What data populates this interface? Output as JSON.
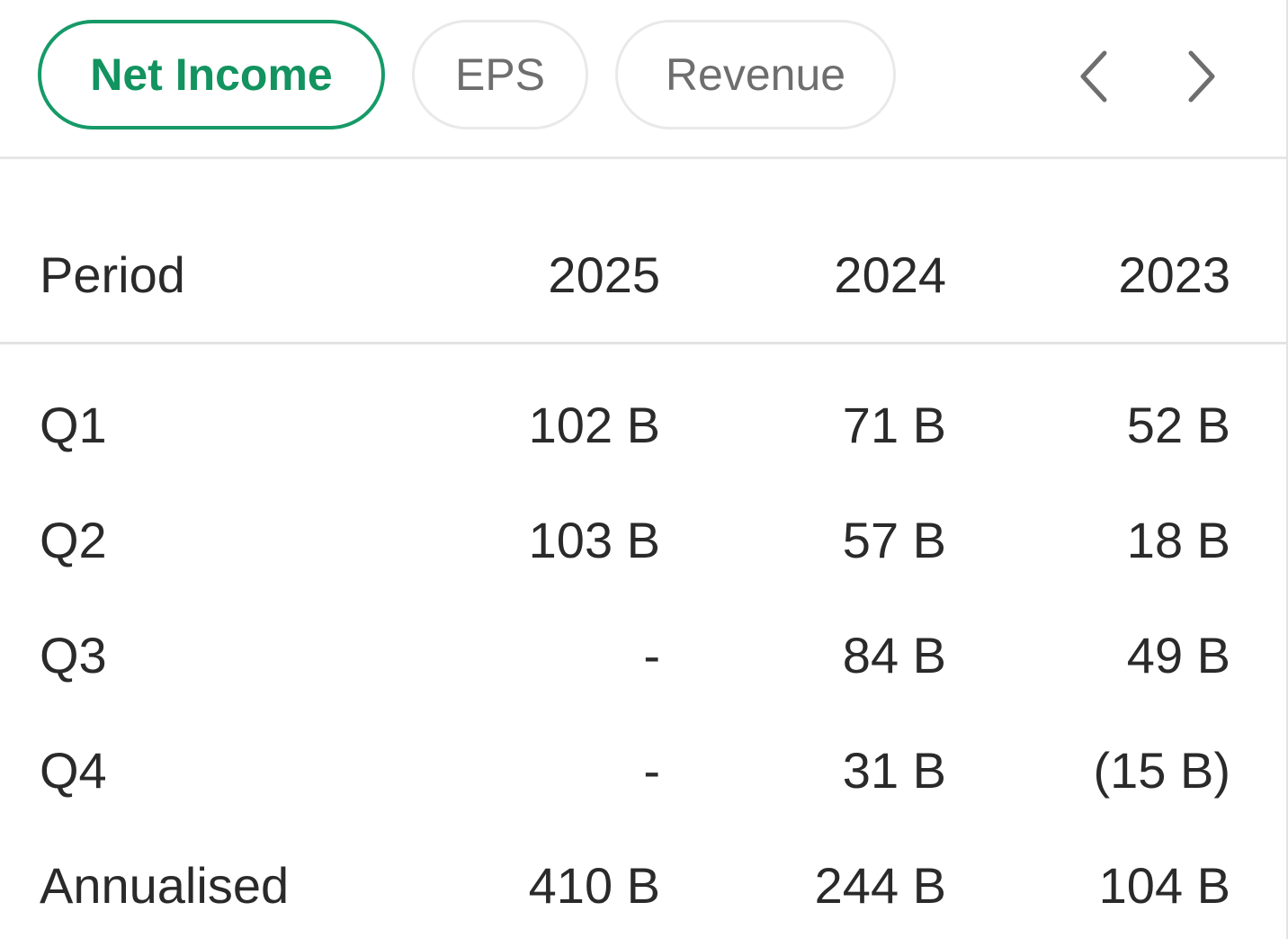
{
  "tabs": [
    {
      "label": "Net Income",
      "active": true
    },
    {
      "label": "EPS",
      "active": false
    },
    {
      "label": "Revenue",
      "active": false
    }
  ],
  "nav": {
    "prev_icon": "chevron-left-icon",
    "next_icon": "chevron-right-icon"
  },
  "colors": {
    "accent": "#12935f",
    "border": "#e6e6e6",
    "text": "#2a2a2a",
    "muted": "#6e6e6e"
  },
  "table": {
    "headers": [
      "Period",
      "2025",
      "2024",
      "2023"
    ],
    "rows": [
      [
        "Q1",
        "102 B",
        "71 B",
        "52 B"
      ],
      [
        "Q2",
        "103 B",
        "57 B",
        "18 B"
      ],
      [
        "Q3",
        "-",
        "84 B",
        "49 B"
      ],
      [
        "Q4",
        "-",
        "31 B",
        "(15 B)"
      ],
      [
        "Annualised",
        "410 B",
        "244 B",
        "104 B"
      ]
    ]
  }
}
